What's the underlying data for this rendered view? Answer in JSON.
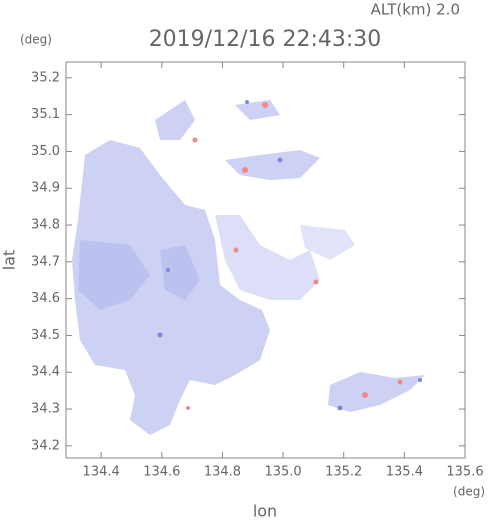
{
  "chart_data": {
    "type": "radar-map",
    "title": "2019/12/16 22:43:30",
    "altitude": "ALT(km) 2.0",
    "x_label": "lon",
    "y_label": "lat",
    "x_unit": "(deg)",
    "y_unit": "(deg)",
    "xlim": [
      134.284,
      135.6
    ],
    "ylim": [
      34.167,
      35.243
    ],
    "xticks": [
      134.4,
      134.6,
      134.8,
      {
        "value": 135,
        "label": "135.0"
      },
      135.2,
      135.4,
      135.6
    ],
    "yticks": [
      34.2,
      34.3,
      34.4,
      34.5,
      34.6,
      34.7,
      34.8,
      34.9,
      {
        "value": 35,
        "label": "35.0"
      },
      35.1,
      35.2
    ]
  }
}
